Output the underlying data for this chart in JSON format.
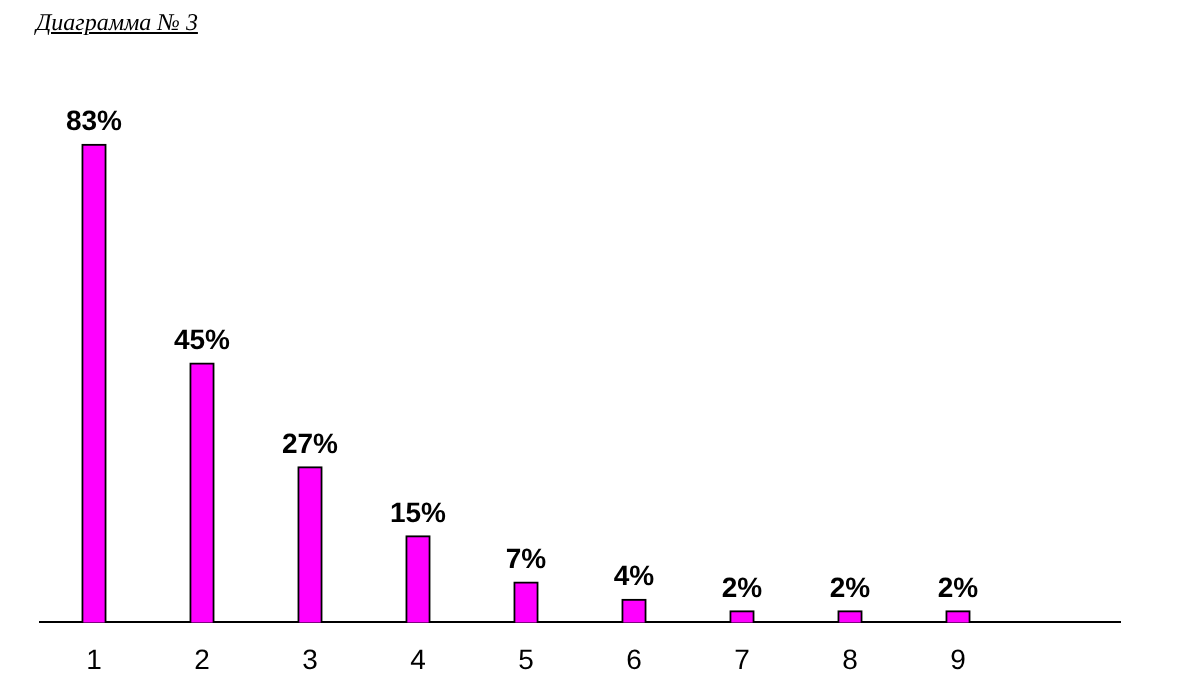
{
  "chart_data": {
    "type": "bar",
    "title": "Диаграмма № 3",
    "categories": [
      "1",
      "2",
      "3",
      "4",
      "5",
      "6",
      "7",
      "8",
      "9",
      null
    ],
    "values": [
      83,
      45,
      27,
      15,
      7,
      4,
      2,
      2,
      2,
      null
    ],
    "value_labels": [
      "83%",
      "45%",
      "27%",
      "15%",
      "7%",
      "4%",
      "2%",
      "2%",
      "2%",
      null
    ],
    "color": "#ff00ff",
    "grid": false,
    "legend": false
  }
}
